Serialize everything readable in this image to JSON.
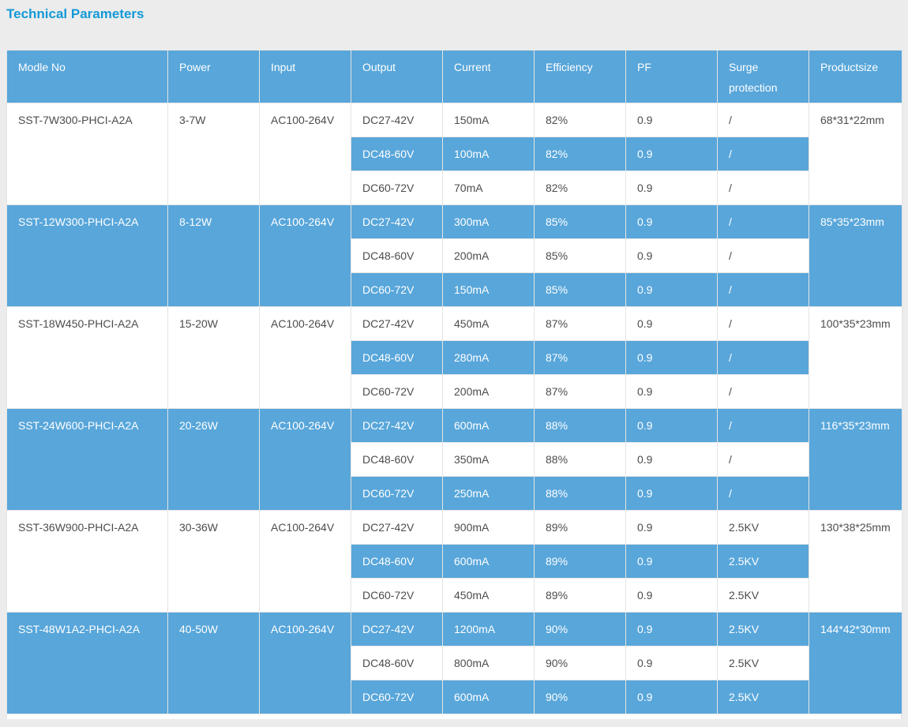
{
  "page": {
    "title": "Technical Parameters"
  },
  "colors": {
    "accent_blue": "#58a6da",
    "title_blue": "#1499d7",
    "text_dark": "#4d4d4d",
    "border": "#e5e5e5",
    "page_background": "#ececec"
  },
  "table": {
    "headers": {
      "model": "Modle  No",
      "power": "Power",
      "input": "Input",
      "output": "Output",
      "current": "Current",
      "efficiency": "Efficiency",
      "pf": "PF",
      "surge": "Surge protection",
      "productsize": "Productsize"
    },
    "groups": [
      {
        "model": "SST-7W300-PHCI-A2A",
        "power": "3-7W",
        "input": "AC100-264V",
        "productsize": "68*31*22mm",
        "rows": [
          {
            "output": "DC27-42V",
            "current": "150mA",
            "efficiency": "82%",
            "pf": "0.9",
            "surge": "/"
          },
          {
            "output": "DC48-60V",
            "current": "100mA",
            "efficiency": "82%",
            "pf": "0.9",
            "surge": "/"
          },
          {
            "output": "DC60-72V",
            "current": "70mA",
            "efficiency": "82%",
            "pf": "0.9",
            "surge": "/"
          }
        ]
      },
      {
        "model": "SST-12W300-PHCI-A2A",
        "power": "8-12W",
        "input": "AC100-264V",
        "productsize": "85*35*23mm",
        "rows": [
          {
            "output": "DC27-42V",
            "current": "300mA",
            "efficiency": "85%",
            "pf": "0.9",
            "surge": "/"
          },
          {
            "output": "DC48-60V",
            "current": "200mA",
            "efficiency": "85%",
            "pf": "0.9",
            "surge": "/"
          },
          {
            "output": "DC60-72V",
            "current": "150mA",
            "efficiency": "85%",
            "pf": "0.9",
            "surge": "/"
          }
        ]
      },
      {
        "model": "SST-18W450-PHCI-A2A",
        "power": "15-20W",
        "input": "AC100-264V",
        "productsize": "100*35*23mm",
        "rows": [
          {
            "output": "DC27-42V",
            "current": "450mA",
            "efficiency": "87%",
            "pf": "0.9",
            "surge": "/"
          },
          {
            "output": "DC48-60V",
            "current": "280mA",
            "efficiency": "87%",
            "pf": "0.9",
            "surge": "/"
          },
          {
            "output": "DC60-72V",
            "current": "200mA",
            "efficiency": "87%",
            "pf": "0.9",
            "surge": "/"
          }
        ]
      },
      {
        "model": "SST-24W600-PHCI-A2A",
        "power": "20-26W",
        "input": "AC100-264V",
        "productsize": "116*35*23mm",
        "rows": [
          {
            "output": "DC27-42V",
            "current": "600mA",
            "efficiency": "88%",
            "pf": "0.9",
            "surge": "/"
          },
          {
            "output": "DC48-60V",
            "current": "350mA",
            "efficiency": "88%",
            "pf": "0.9",
            "surge": "/"
          },
          {
            "output": "DC60-72V",
            "current": "250mA",
            "efficiency": "88%",
            "pf": "0.9",
            "surge": "/"
          }
        ]
      },
      {
        "model": "SST-36W900-PHCI-A2A",
        "power": "30-36W",
        "input": "AC100-264V",
        "productsize": "130*38*25mm",
        "rows": [
          {
            "output": "DC27-42V",
            "current": "900mA",
            "efficiency": "89%",
            "pf": "0.9",
            "surge": "2.5KV"
          },
          {
            "output": "DC48-60V",
            "current": "600mA",
            "efficiency": "89%",
            "pf": "0.9",
            "surge": "2.5KV"
          },
          {
            "output": "DC60-72V",
            "current": "450mA",
            "efficiency": "89%",
            "pf": "0.9",
            "surge": "2.5KV"
          }
        ]
      },
      {
        "model": "SST-48W1A2-PHCI-A2A",
        "power": "40-50W",
        "input": "AC100-264V",
        "productsize": "144*42*30mm",
        "rows": [
          {
            "output": "DC27-42V",
            "current": "1200mA",
            "efficiency": "90%",
            "pf": "0.9",
            "surge": "2.5KV"
          },
          {
            "output": "DC48-60V",
            "current": "800mA",
            "efficiency": "90%",
            "pf": "0.9",
            "surge": "2.5KV"
          },
          {
            "output": "DC60-72V",
            "current": "600mA",
            "efficiency": "90%",
            "pf": "0.9",
            "surge": "2.5KV"
          }
        ]
      }
    ]
  }
}
